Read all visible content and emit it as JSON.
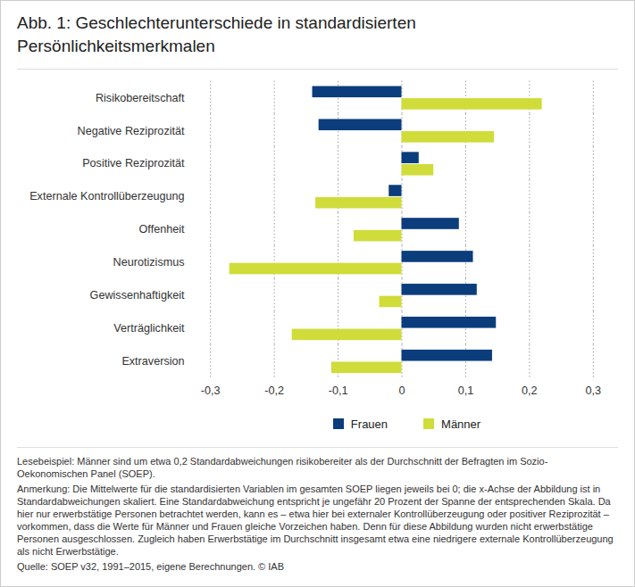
{
  "chart_data": {
    "type": "bar",
    "orientation": "horizontal",
    "title": "Abb. 1: Geschlechterunterschiede in standardisierten Persönlichkeitsmerkmalen",
    "categories": [
      "Risikobereitschaft",
      "Negative Reziprozität",
      "Positive Reziprozität",
      "Externale Kontrollüberzeugung",
      "Offenheit",
      "Neurotizismus",
      "Gewissenhaftigkeit",
      "Verträglichkeit",
      "Extraversion"
    ],
    "series": [
      {
        "name": "Frauen",
        "color": "#0b3d7c",
        "values": [
          -0.14,
          -0.13,
          0.027,
          -0.02,
          0.09,
          0.112,
          0.118,
          0.148,
          0.142
        ]
      },
      {
        "name": "Männer",
        "color": "#cfdc3a",
        "values": [
          0.22,
          0.145,
          0.05,
          -0.135,
          -0.075,
          -0.27,
          -0.035,
          -0.172,
          -0.11
        ]
      }
    ],
    "xlim": [
      -0.3,
      0.3
    ],
    "xticks": [
      {
        "value": -0.3,
        "label": "-0,3"
      },
      {
        "value": -0.2,
        "label": "-0,2"
      },
      {
        "value": -0.1,
        "label": "-0,1"
      },
      0,
      {
        "value": 0.1,
        "label": "0,1"
      },
      {
        "value": 0.2,
        "label": "0,2"
      },
      {
        "value": 0.3,
        "label": "0,3"
      }
    ],
    "grid": true,
    "legend": "bottom",
    "notes": [
      "Lesebeispiel: Männer sind um etwa 0,2 Standardabweichungen risikobereiter als der Durchschnitt der Befragten im Sozio-Oekonomischen Panel (SOEP).",
      "Anmerkung: Die Mittelwerte für die standardisierten Variablen im gesamten SOEP liegen jeweils bei 0; die x-Achse der Abbildung ist in Standardabweichungen skaliert. Eine Standardabweichung entspricht je ungefähr 20 Prozent der Spanne der entsprechenden Skala. Da hier nur erwerbstätige Personen betrachtet werden, kann es – etwa hier bei externaler Kontrollüberzeugung oder positiver Reziprozität – vorkommen, dass die Werte für Männer und Frauen gleiche Vorzeichen haben. Denn für diese Abbildung wurden nicht erwerbstätige Personen ausgeschlossen. Zugleich haben Erwerbstätige im Durchschnitt insgesamt etwa eine niedrigere externale Kontrollüberzeugung als nicht Erwerbstätige.",
      "Quelle: SOEP v32, 1991–2015, eigene Berechnungen. © IAB"
    ]
  }
}
